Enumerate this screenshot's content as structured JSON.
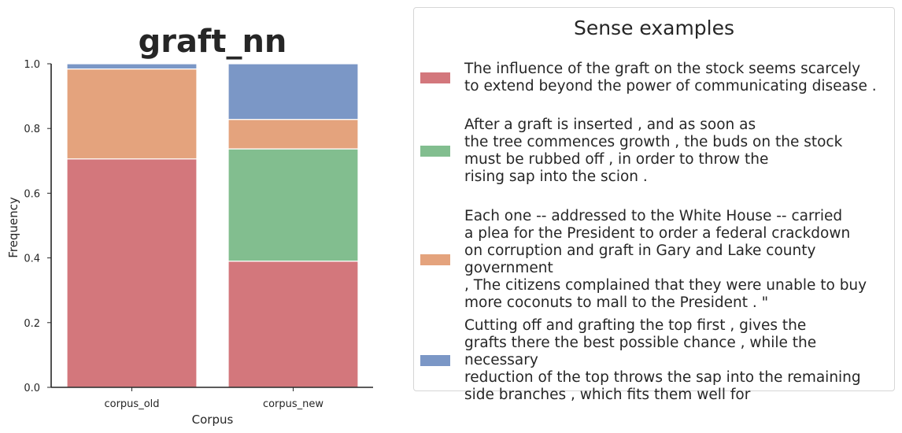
{
  "chart_data": {
    "type": "bar",
    "stacked": true,
    "title": "graft_nn",
    "xlabel": "Corpus",
    "ylabel": "Frequency",
    "ylim": [
      0,
      1.0
    ],
    "yticks": [
      "0.0",
      "0.2",
      "0.4",
      "0.6",
      "0.8",
      "1.0"
    ],
    "categories": [
      "corpus_old",
      "corpus_new"
    ],
    "grid": false,
    "legend_position": "right",
    "series": [
      {
        "color": "#d3777c",
        "values": [
          0.706,
          0.39
        ]
      },
      {
        "color": "#82be8f",
        "values": [
          0.0,
          0.347
        ]
      },
      {
        "color": "#e4a37d",
        "values": [
          0.278,
          0.091
        ]
      },
      {
        "color": "#7b97c6",
        "values": [
          0.016,
          0.172
        ]
      }
    ]
  },
  "legend": {
    "title": "Sense examples",
    "items": [
      {
        "color": "#d3777c",
        "text": "The influence of the graft on the stock seems scarcely\nto extend beyond the power of communicating disease ."
      },
      {
        "color": "#82be8f",
        "text": "After a graft is inserted , and as soon as\nthe tree commences growth , the buds on the stock\nmust be rubbed off , in order to throw the\nrising sap into the scion ."
      },
      {
        "color": "#e4a37d",
        "text": "Each one -- addressed to the White House -- carried\na plea for the President to order a federal crackdown\non corruption and graft in Gary and Lake county government\n, The citizens complained that they were unable to buy\nmore coconuts to mall to the President . \""
      },
      {
        "color": "#7b97c6",
        "text": "Cutting off and grafting the top first , gives the\ngrafts there the best possible chance , while the necessary\nreduction of the top throws the sap into the remaining\nside branches , which fits them well for"
      }
    ]
  }
}
